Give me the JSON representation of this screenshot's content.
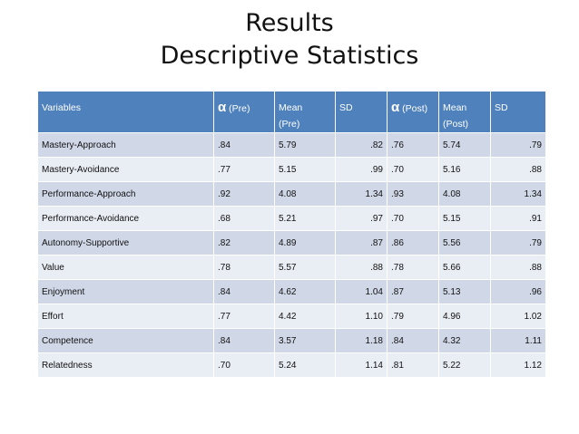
{
  "title": {
    "line1": "Results",
    "line2": "Descriptive Statistics"
  },
  "table": {
    "headers": {
      "variables": "Variables",
      "alpha_pre_symbol": "α",
      "alpha_pre_label": "(Pre)",
      "mean_pre_line1": "Mean",
      "mean_pre_line2": "(Pre)",
      "sd_pre": "SD",
      "alpha_post_symbol": "α",
      "alpha_post_label": "(Post)",
      "mean_post_line1": "Mean",
      "mean_post_line2": "(Post)",
      "sd_post": "SD"
    },
    "rows": [
      [
        "Mastery-Approach",
        ".84",
        "5.79",
        ".82",
        ".76",
        "5.74",
        ".79"
      ],
      [
        "Mastery-Avoidance",
        ".77",
        "5.15",
        ".99",
        ".70",
        "5.16",
        ".88"
      ],
      [
        "Performance-Approach",
        ".92",
        "4.08",
        "1.34",
        ".93",
        "4.08",
        "1.34"
      ],
      [
        "Performance-Avoidance",
        ".68",
        "5.21",
        ".97",
        ".70",
        "5.15",
        ".91"
      ],
      [
        "Autonomy-Supportive",
        ".82",
        "4.89",
        ".87",
        ".86",
        "5.56",
        ".79"
      ],
      [
        "Value",
        ".78",
        "5.57",
        ".88",
        ".78",
        "5.66",
        ".88"
      ],
      [
        "Enjoyment",
        ".84",
        "4.62",
        "1.04",
        ".87",
        "5.13",
        ".96"
      ],
      [
        "Effort",
        ".77",
        "4.42",
        "1.10",
        ".79",
        "4.96",
        "1.02"
      ],
      [
        "Competence",
        ".84",
        "3.57",
        "1.18",
        ".84",
        "4.32",
        "1.11"
      ],
      [
        "Relatedness",
        ".70",
        "5.24",
        "1.14",
        ".81",
        "5.22",
        "1.12"
      ]
    ],
    "colors": {
      "header_bg": "#4f81bd",
      "row_odd": "#d0d8e8",
      "row_even": "#e9edf4"
    }
  }
}
